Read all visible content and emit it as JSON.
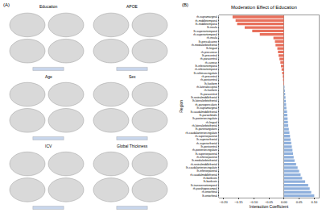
{
  "panel_a": {
    "label": "(A)",
    "subplots": [
      "Education",
      "APOE",
      "Age",
      "Sex",
      "ICV",
      "Global Thickness"
    ]
  },
  "panel_b_label": "(B)",
  "chart_data": {
    "type": "bar",
    "orientation": "horizontal",
    "title": "Moderation Effect of Education",
    "x_label": "Interaction Coefficient",
    "y_label": "Region",
    "grid": false,
    "xlim": [
      -0.215,
      0.115
    ],
    "xticks": [
      {
        "value": -0.2,
        "label": "−0.20"
      },
      {
        "value": -0.15,
        "label": "−0.15"
      },
      {
        "value": -0.1,
        "label": "−0.10"
      },
      {
        "value": -0.05,
        "label": "−0.05"
      },
      {
        "value": 0,
        "label": "0.00"
      },
      {
        "value": 0.05,
        "label": "0.05"
      },
      {
        "value": 0.1,
        "label": "0.10"
      }
    ],
    "categories": [
      "rh-supramarginal",
      "rh-middletemporal",
      "lh-middletemporal",
      "lh-insula",
      "lh-superiortemporal",
      "rh-superiortemporal",
      "rh-insula",
      "lh-pericalcarine",
      "rh-medialorbitofrontal",
      "lh-lingual",
      "rh-precuneus",
      "lh-precentral",
      "rh-paracentral",
      "rh-cuneus",
      "lh-inferiortemporal",
      "rh-inferiortemporal",
      "lh-isthmuscingulate",
      "rh-precentral",
      "rh-postcentral",
      "lh-fusiform",
      "rh-lateraloccipital",
      "rh-fusiform",
      "lh-paracentral",
      "lh-rostralmiddlefrontal",
      "lh-lateralorbitofrontal",
      "rh-parsopercularis",
      "lh-supramarginal",
      "lh-caudalmiddlefrontal",
      "lh-parsorbitalis",
      "lh-posteriorcingulate",
      "rh-lingual",
      "rh-lateralorbitofrontal",
      "lh-parstriangularis",
      "rh-caudalanteriorcingulate",
      "rh-superiorparietal",
      "lh-superiorfrontal",
      "rh-superiorfrontal",
      "lh-postcentral",
      "rh-posteriorcingulate",
      "lh-superiorparietal",
      "rh-inferiorparietal",
      "lh-medialorbitofrontal",
      "rh-rostralmiddlefrontal",
      "lh-caudalanteriorcingulate",
      "lh-inferiorparietal",
      "rh-caudalmiddlefrontal",
      "rh-bankssts",
      "lh-bankssts",
      "lh-transversetemporal",
      "rh-parahippocampal",
      "rh-entorhinal",
      "lh-entorhinal"
    ],
    "values": [
      -0.17,
      -0.16,
      -0.155,
      -0.13,
      -0.105,
      -0.08,
      -0.035,
      -0.03,
      -0.028,
      -0.022,
      -0.02,
      -0.018,
      -0.015,
      -0.012,
      -0.01,
      -0.008,
      -0.006,
      -0.004,
      -0.003,
      -0.002,
      0.002,
      0.003,
      0.004,
      0.005,
      0.006,
      0.007,
      0.008,
      0.01,
      0.011,
      0.012,
      0.013,
      0.014,
      0.016,
      0.018,
      0.02,
      0.022,
      0.024,
      0.026,
      0.028,
      0.03,
      0.032,
      0.035,
      0.04,
      0.045,
      0.05,
      0.055,
      0.06,
      0.07,
      0.08,
      0.085,
      0.09,
      0.1
    ],
    "colors": [
      "#e8705c",
      "#e8705c",
      "#e8705c",
      "#e8705c",
      "#e8705c",
      "#e8705c",
      "#e8705c",
      "#e8705c",
      "#e8705c",
      "#e8705c",
      "#e8705c",
      "#e8705c",
      "#e8705c",
      "#e8705c",
      "#e8705c",
      "#e8705c",
      "#e8705c",
      "#e8705c",
      "#e8705c",
      "#e8705c",
      "#8fb0dc",
      "#8fb0dc",
      "#8fb0dc",
      "#8fb0dc",
      "#8fb0dc",
      "#8fb0dc",
      "#8fb0dc",
      "#8fb0dc",
      "#8fb0dc",
      "#8fb0dc",
      "#8fb0dc",
      "#8fb0dc",
      "#8fb0dc",
      "#8fb0dc",
      "#8fb0dc",
      "#8fb0dc",
      "#8fb0dc",
      "#8fb0dc",
      "#8fb0dc",
      "#8fb0dc",
      "#8fb0dc",
      "#8fb0dc",
      "#8fb0dc",
      "#8fb0dc",
      "#8fb0dc",
      "#8fb0dc",
      "#8fb0dc",
      "#8fb0dc",
      "#8fb0dc",
      "#8fb0dc",
      "#8fb0dc",
      "#8fb0dc"
    ]
  }
}
